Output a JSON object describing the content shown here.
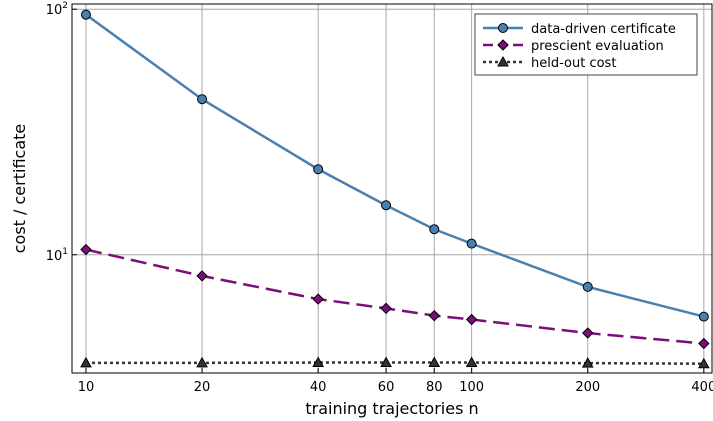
{
  "chart_data": {
    "type": "line",
    "xlabel": "training trajectories n",
    "ylabel": "cost / certificate",
    "x_scale": "log",
    "y_scale": "log",
    "xlim": [
      9.2,
      420
    ],
    "ylim": [
      3.3,
      105
    ],
    "x": [
      10,
      20,
      40,
      60,
      80,
      100,
      200,
      400
    ],
    "x_tick_labels": [
      "10",
      "20",
      "40",
      "60",
      "80",
      "100",
      "200",
      "400"
    ],
    "y_ticks": [
      {
        "base": "10",
        "exp": "1"
      },
      {
        "base": "10",
        "exp": "2"
      }
    ],
    "grid": true,
    "legend_position": "top-right",
    "series": [
      {
        "name": "data-driven certificate",
        "values": [
          95,
          43,
          22.3,
          15.9,
          12.7,
          11.1,
          7.4,
          5.6
        ],
        "color": "#4a80b0",
        "line_style": "solid",
        "marker": "circle"
      },
      {
        "name": "prescient evaluation",
        "values": [
          10.5,
          8.2,
          6.6,
          6.05,
          5.65,
          5.45,
          4.8,
          4.35
        ],
        "color": "#7a0f7a",
        "line_style": "dashed",
        "marker": "diamond"
      },
      {
        "name": "held-out cost",
        "values": [
          3.63,
          3.63,
          3.64,
          3.64,
          3.64,
          3.64,
          3.62,
          3.6
        ],
        "color": "#333333",
        "line_style": "dotted",
        "marker": "triangle"
      }
    ]
  }
}
